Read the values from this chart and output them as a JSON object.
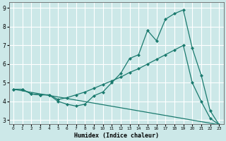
{
  "xlabel": "Humidex (Indice chaleur)",
  "bg_color": "#cce8e8",
  "grid_color": "#ffffff",
  "line_color": "#1a7a6e",
  "line1_x": [
    0,
    1,
    2,
    3,
    4,
    5,
    6,
    7,
    8,
    9,
    10,
    11,
    12,
    13,
    14,
    15,
    16,
    17,
    18,
    19,
    20,
    21,
    22,
    23
  ],
  "line1_y": [
    4.65,
    4.65,
    4.4,
    4.35,
    4.35,
    4.0,
    3.85,
    3.75,
    3.85,
    4.3,
    4.5,
    5.0,
    5.5,
    6.3,
    6.5,
    7.8,
    7.25,
    8.4,
    8.7,
    8.9,
    6.85,
    5.4,
    3.5,
    2.75
  ],
  "line2_x": [
    0,
    1,
    2,
    3,
    4,
    5,
    6,
    7,
    8,
    9,
    10,
    11,
    12,
    13,
    14,
    15,
    16,
    17,
    18,
    19,
    20,
    21,
    22,
    23
  ],
  "line2_y": [
    4.65,
    4.65,
    4.4,
    4.35,
    4.35,
    4.1,
    4.2,
    4.35,
    4.5,
    4.7,
    4.9,
    5.1,
    5.3,
    5.55,
    5.75,
    6.0,
    6.25,
    6.5,
    6.75,
    7.0,
    5.0,
    4.0,
    3.1,
    2.75
  ],
  "line3_x": [
    0,
    23
  ],
  "line3_y": [
    4.65,
    2.75
  ],
  "xlim": [
    -0.5,
    23.5
  ],
  "ylim": [
    2.8,
    9.3
  ],
  "yticks": [
    3,
    4,
    5,
    6,
    7,
    8,
    9
  ],
  "xticks": [
    0,
    1,
    2,
    3,
    4,
    5,
    6,
    7,
    8,
    9,
    10,
    11,
    12,
    13,
    14,
    15,
    16,
    17,
    18,
    19,
    20,
    21,
    22,
    23
  ],
  "xlabel_fontsize": 6,
  "tick_fontsize_x": 4.2,
  "tick_fontsize_y": 5.5,
  "marker_size": 2.5,
  "linewidth": 0.9
}
